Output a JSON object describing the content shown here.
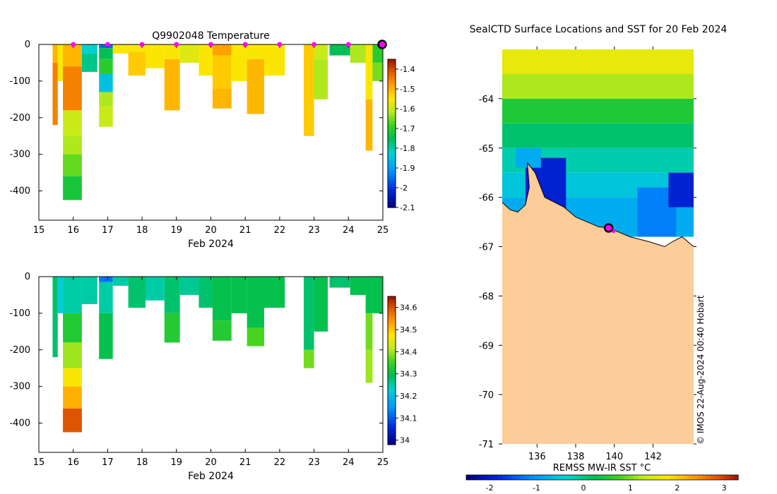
{
  "chart_data": [
    {
      "type": "heatmap",
      "title": "Q9902048  Temperature",
      "xlabel": "Feb 2024",
      "ylabel": "",
      "xlim": [
        15,
        25
      ],
      "ylim": [
        -480,
        0
      ],
      "x_ticks": [
        15,
        16,
        17,
        18,
        19,
        20,
        21,
        22,
        23,
        24,
        25
      ],
      "y_ticks": [
        0,
        -100,
        -200,
        -300,
        -400
      ],
      "colorbar": {
        "range": [
          -2.1,
          -1.35
        ],
        "ticks": [
          "-1.4",
          "-1.5",
          "-1.6",
          "-1.7",
          "-1.8",
          "-1.9",
          "-2",
          "-2.1"
        ],
        "tick_values": [
          -1.4,
          -1.5,
          -1.6,
          -1.7,
          -1.8,
          -1.9,
          -2.0,
          -2.1
        ]
      },
      "daily_markers": [
        16,
        17,
        18,
        19,
        20,
        21,
        22,
        23,
        24
      ],
      "latest_marker": 24.98,
      "profiles": [
        {
          "x": 15.4,
          "w": 0.15,
          "depth": 220,
          "segments": [
            [
              0,
              50,
              -1.5
            ],
            [
              50,
              220,
              -1.45
            ]
          ]
        },
        {
          "x": 15.55,
          "w": 0.15,
          "depth": 100,
          "segments": [
            [
              0,
              100,
              -1.55
            ]
          ]
        },
        {
          "x": 15.7,
          "w": 0.55,
          "depth": 425,
          "segments": [
            [
              0,
              60,
              -1.5
            ],
            [
              60,
              180,
              -1.45
            ],
            [
              180,
              250,
              -1.6
            ],
            [
              250,
              300,
              -1.62
            ],
            [
              300,
              360,
              -1.66
            ],
            [
              360,
              425,
              -1.72
            ]
          ]
        },
        {
          "x": 16.25,
          "w": 0.45,
          "depth": 75,
          "segments": [
            [
              0,
              25,
              -1.82
            ],
            [
              25,
              75,
              -1.78
            ]
          ]
        },
        {
          "x": 16.75,
          "w": 0.4,
          "depth": 225,
          "segments": [
            [
              0,
              10,
              -1.95
            ],
            [
              10,
              40,
              -1.75
            ],
            [
              40,
              80,
              -1.7
            ],
            [
              80,
              130,
              -1.85
            ],
            [
              130,
              170,
              -1.62
            ],
            [
              170,
              225,
              -1.6
            ]
          ]
        },
        {
          "x": 17.15,
          "w": 0.45,
          "depth": 25,
          "segments": [
            [
              0,
              25,
              -1.55
            ]
          ]
        },
        {
          "x": 17.6,
          "w": 0.5,
          "depth": 85,
          "segments": [
            [
              0,
              20,
              -1.55
            ],
            [
              20,
              85,
              -1.52
            ]
          ]
        },
        {
          "x": 18.1,
          "w": 0.55,
          "depth": 65,
          "segments": [
            [
              0,
              65,
              -1.55
            ]
          ]
        },
        {
          "x": 18.65,
          "w": 0.45,
          "depth": 180,
          "segments": [
            [
              0,
              40,
              -1.55
            ],
            [
              40,
              180,
              -1.5
            ]
          ]
        },
        {
          "x": 19.1,
          "w": 0.55,
          "depth": 50,
          "segments": [
            [
              0,
              50,
              -1.58
            ]
          ]
        },
        {
          "x": 19.65,
          "w": 0.4,
          "depth": 85,
          "segments": [
            [
              0,
              85,
              -1.55
            ]
          ]
        },
        {
          "x": 20.05,
          "w": 0.55,
          "depth": 175,
          "segments": [
            [
              0,
              30,
              -1.48
            ],
            [
              30,
              120,
              -1.52
            ],
            [
              120,
              175,
              -1.5
            ]
          ]
        },
        {
          "x": 20.6,
          "w": 0.45,
          "depth": 100,
          "segments": [
            [
              0,
              100,
              -1.55
            ]
          ]
        },
        {
          "x": 21.05,
          "w": 0.5,
          "depth": 190,
          "segments": [
            [
              0,
              40,
              -1.55
            ],
            [
              40,
              190,
              -1.5
            ]
          ]
        },
        {
          "x": 21.55,
          "w": 0.6,
          "depth": 85,
          "segments": [
            [
              0,
              85,
              -1.55
            ]
          ]
        },
        {
          "x": 22.7,
          "w": 0.3,
          "depth": 250,
          "segments": [
            [
              0,
              250,
              -1.52
            ]
          ]
        },
        {
          "x": 23.0,
          "w": 0.4,
          "depth": 150,
          "segments": [
            [
              0,
              40,
              -1.6
            ],
            [
              40,
              150,
              -1.62
            ]
          ]
        },
        {
          "x": 23.45,
          "w": 0.6,
          "depth": 30,
          "segments": [
            [
              0,
              30,
              -1.75
            ]
          ]
        },
        {
          "x": 24.05,
          "w": 0.5,
          "depth": 50,
          "segments": [
            [
              0,
              50,
              -1.62
            ]
          ]
        },
        {
          "x": 24.5,
          "w": 0.2,
          "depth": 290,
          "segments": [
            [
              0,
              150,
              -1.55
            ],
            [
              150,
              290,
              -1.5
            ]
          ]
        },
        {
          "x": 24.7,
          "w": 0.3,
          "depth": 100,
          "segments": [
            [
              0,
              50,
              -1.7
            ],
            [
              50,
              100,
              -1.65
            ]
          ]
        }
      ]
    },
    {
      "type": "heatmap",
      "title": "",
      "xlabel": "Feb 2024",
      "ylabel": "",
      "xlim": [
        15,
        25
      ],
      "ylim": [
        -480,
        0
      ],
      "x_ticks": [
        15,
        16,
        17,
        18,
        19,
        20,
        21,
        22,
        23,
        24,
        25
      ],
      "y_ticks": [
        0,
        -100,
        -200,
        -300,
        -400
      ],
      "colorbar": {
        "range": [
          33.98,
          34.65
        ],
        "ticks": [
          "34.6",
          "34.5",
          "34.4",
          "34.3",
          "34.2",
          "34.1",
          "34"
        ],
        "tick_values": [
          34.6,
          34.5,
          34.4,
          34.3,
          34.2,
          34.1,
          34.0
        ]
      },
      "profiles": [
        {
          "x": 15.4,
          "w": 0.15,
          "depth": 220,
          "segments": [
            [
              0,
              220,
              34.28
            ]
          ]
        },
        {
          "x": 15.55,
          "w": 0.15,
          "depth": 100,
          "segments": [
            [
              0,
              100,
              34.22
            ]
          ]
        },
        {
          "x": 15.7,
          "w": 0.55,
          "depth": 425,
          "segments": [
            [
              0,
              100,
              34.25
            ],
            [
              100,
              180,
              34.33
            ],
            [
              180,
              250,
              34.4
            ],
            [
              250,
              300,
              34.47
            ],
            [
              300,
              360,
              34.52
            ],
            [
              360,
              425,
              34.6
            ]
          ]
        },
        {
          "x": 16.25,
          "w": 0.45,
          "depth": 75,
          "segments": [
            [
              0,
              75,
              34.25
            ]
          ]
        },
        {
          "x": 16.75,
          "w": 0.4,
          "depth": 225,
          "segments": [
            [
              0,
              15,
              34.12
            ],
            [
              15,
              100,
              34.25
            ],
            [
              100,
              225,
              34.3
            ]
          ]
        },
        {
          "x": 17.15,
          "w": 0.45,
          "depth": 25,
          "segments": [
            [
              0,
              25,
              34.25
            ]
          ]
        },
        {
          "x": 17.6,
          "w": 0.5,
          "depth": 85,
          "segments": [
            [
              0,
              85,
              34.28
            ]
          ]
        },
        {
          "x": 18.1,
          "w": 0.55,
          "depth": 65,
          "segments": [
            [
              0,
              65,
              34.25
            ]
          ]
        },
        {
          "x": 18.65,
          "w": 0.45,
          "depth": 180,
          "segments": [
            [
              0,
              100,
              34.28
            ],
            [
              100,
              180,
              34.33
            ]
          ]
        },
        {
          "x": 19.1,
          "w": 0.55,
          "depth": 50,
          "segments": [
            [
              0,
              50,
              34.26
            ]
          ]
        },
        {
          "x": 19.65,
          "w": 0.4,
          "depth": 85,
          "segments": [
            [
              0,
              85,
              34.28
            ]
          ]
        },
        {
          "x": 20.05,
          "w": 0.55,
          "depth": 175,
          "segments": [
            [
              0,
              120,
              34.3
            ],
            [
              120,
              175,
              34.33
            ]
          ]
        },
        {
          "x": 20.6,
          "w": 0.45,
          "depth": 100,
          "segments": [
            [
              0,
              100,
              34.3
            ]
          ]
        },
        {
          "x": 21.05,
          "w": 0.5,
          "depth": 190,
          "segments": [
            [
              0,
              140,
              34.3
            ],
            [
              140,
              190,
              34.36
            ]
          ]
        },
        {
          "x": 21.55,
          "w": 0.6,
          "depth": 85,
          "segments": [
            [
              0,
              85,
              34.3
            ]
          ]
        },
        {
          "x": 22.7,
          "w": 0.3,
          "depth": 250,
          "segments": [
            [
              0,
              200,
              34.28
            ],
            [
              200,
              250,
              34.38
            ]
          ]
        },
        {
          "x": 23.0,
          "w": 0.4,
          "depth": 150,
          "segments": [
            [
              0,
              150,
              34.3
            ]
          ]
        },
        {
          "x": 23.45,
          "w": 0.6,
          "depth": 30,
          "segments": [
            [
              0,
              30,
              34.28
            ]
          ]
        },
        {
          "x": 24.05,
          "w": 0.5,
          "depth": 50,
          "segments": [
            [
              0,
              50,
              34.3
            ]
          ]
        },
        {
          "x": 24.5,
          "w": 0.2,
          "depth": 290,
          "segments": [
            [
              0,
              100,
              34.3
            ],
            [
              100,
              200,
              34.38
            ],
            [
              200,
              290,
              34.4
            ]
          ]
        },
        {
          "x": 24.7,
          "w": 0.3,
          "depth": 100,
          "segments": [
            [
              0,
              100,
              34.3
            ]
          ]
        }
      ]
    },
    {
      "type": "heatmap",
      "title": "SealCTD Surface Locations and SST for 20 Feb 2024",
      "xlabel": "REMSS MW-IR SST °C",
      "ylabel": "",
      "xlim": [
        134.2,
        144.1
      ],
      "ylim": [
        -71,
        -63
      ],
      "x_ticks": [
        136,
        138,
        140,
        142
      ],
      "y_ticks": [
        -64,
        -65,
        -66,
        -67,
        -68,
        -69,
        -70,
        -71
      ],
      "colorbar": {
        "range": [
          -2.5,
          3.3
        ],
        "ticks": [
          "-2",
          "-1",
          "0",
          "1",
          "2",
          "3"
        ],
        "tick_values": [
          -2,
          -1,
          0,
          1,
          2,
          3
        ]
      },
      "credit": "© IMOS 22-Aug-2024 00:40 Hobart",
      "sst_bands": [
        {
          "from_lat": -63.0,
          "to_lat": -63.5,
          "sst": 1.6
        },
        {
          "from_lat": -63.5,
          "to_lat": -64.0,
          "sst": 1.2
        },
        {
          "from_lat": -64.0,
          "to_lat": -64.5,
          "sst": 0.5
        },
        {
          "from_lat": -64.5,
          "to_lat": -65.0,
          "sst": 0.1
        },
        {
          "from_lat": -65.0,
          "to_lat": -65.5,
          "sst": -0.2
        },
        {
          "from_lat": -65.5,
          "to_lat": -66.0,
          "sst": -0.5
        },
        {
          "from_lat": -66.0,
          "to_lat": -66.8,
          "sst": -0.8
        }
      ],
      "cold_patches": [
        {
          "lon": [
            135.4,
            137.5
          ],
          "lat": [
            -65.2,
            -66.3
          ],
          "sst": -1.9
        },
        {
          "lon": [
            141.2,
            143.2
          ],
          "lat": [
            -65.8,
            -66.8
          ],
          "sst": -1.2
        },
        {
          "lon": [
            142.8,
            144.1
          ],
          "lat": [
            -65.5,
            -66.2
          ],
          "sst": -1.9
        },
        {
          "lon": [
            134.9,
            136.2
          ],
          "lat": [
            -65.0,
            -65.4
          ],
          "sst": -0.8
        }
      ],
      "coastline": [
        [
          134.2,
          -66.1
        ],
        [
          134.6,
          -66.25
        ],
        [
          135.0,
          -66.3
        ],
        [
          135.4,
          -66.15
        ],
        [
          135.6,
          -65.8
        ],
        [
          135.5,
          -65.3
        ],
        [
          135.9,
          -65.5
        ],
        [
          136.4,
          -66.0
        ],
        [
          136.9,
          -66.1
        ],
        [
          137.4,
          -66.2
        ],
        [
          138.0,
          -66.4
        ],
        [
          138.6,
          -66.5
        ],
        [
          139.2,
          -66.6
        ],
        [
          139.7,
          -66.62
        ],
        [
          140.2,
          -66.7
        ],
        [
          140.8,
          -66.8
        ],
        [
          141.3,
          -66.85
        ],
        [
          141.8,
          -66.9
        ],
        [
          142.2,
          -66.95
        ],
        [
          142.6,
          -67.0
        ],
        [
          143.0,
          -66.9
        ],
        [
          143.5,
          -66.8
        ],
        [
          144.1,
          -67.0
        ]
      ],
      "ctd_locations": [
        [
          139.7,
          -66.62
        ],
        [
          139.95,
          -66.68
        ]
      ],
      "latest_location": [
        139.7,
        -66.62
      ]
    }
  ]
}
